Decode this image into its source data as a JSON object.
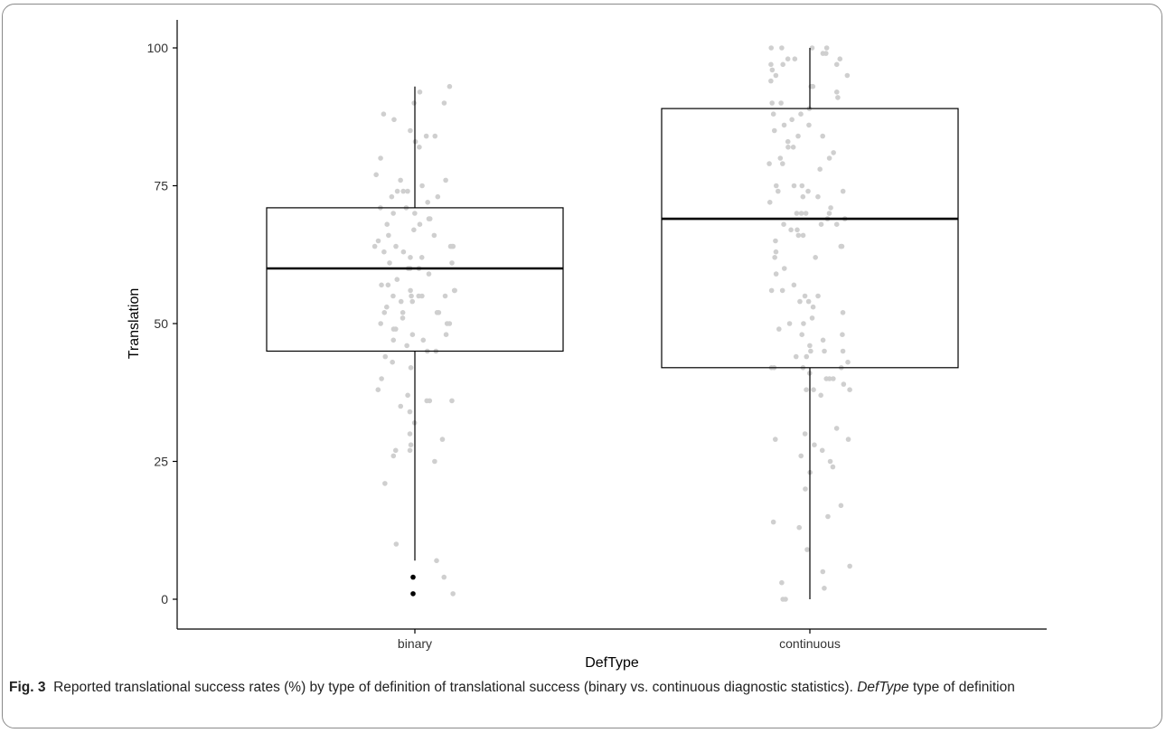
{
  "chart_data": {
    "type": "boxplot",
    "xlabel": "DefType",
    "ylabel": "Translation",
    "categories": [
      "binary",
      "continuous"
    ],
    "ylim": [
      -3,
      105
    ],
    "yticks": [
      0,
      25,
      50,
      75,
      100
    ],
    "grid": false,
    "boxes": [
      {
        "category": "binary",
        "whisker_low": 7,
        "q1": 45,
        "median": 60,
        "q3": 71,
        "whisker_high": 93,
        "outliers": [
          4,
          1
        ]
      },
      {
        "category": "continuous",
        "whisker_low": 0,
        "q1": 42,
        "median": 69,
        "q3": 89,
        "whisker_high": 100,
        "outliers": []
      }
    ],
    "jitter_points": [
      {
        "category": "binary",
        "values": [
          90,
          92,
          88,
          87,
          85,
          83,
          80,
          76,
          75,
          74,
          74,
          73,
          72,
          71,
          70,
          70,
          69,
          68,
          68,
          67,
          66,
          65,
          64,
          64,
          63,
          62,
          61,
          61,
          60,
          60,
          59,
          58,
          57,
          56,
          56,
          55,
          55,
          54,
          53,
          52,
          52,
          51,
          50,
          50,
          49,
          48,
          48,
          47,
          47,
          46,
          45,
          45,
          44,
          43,
          42,
          40,
          38,
          37,
          36,
          36,
          36,
          35,
          34,
          32,
          30,
          29,
          28,
          27,
          27,
          26,
          25,
          21,
          10,
          7,
          4,
          1,
          93,
          90,
          84,
          84,
          82,
          77,
          76,
          74,
          73,
          71,
          69,
          66,
          64,
          64,
          64,
          63,
          62,
          60,
          57,
          56,
          55,
          55,
          55,
          54,
          52,
          52,
          50,
          49
        ]
      },
      {
        "category": "continuous",
        "values": [
          100,
          100,
          100,
          99,
          99,
          98,
          98,
          97,
          97,
          96,
          95,
          94,
          93,
          92,
          91,
          90,
          89,
          88,
          87,
          86,
          85,
          84,
          83,
          82,
          81,
          80,
          79,
          79,
          78,
          75,
          75,
          74,
          74,
          73,
          72,
          71,
          70,
          70,
          70,
          69,
          69,
          68,
          67,
          66,
          65,
          64,
          63,
          62,
          60,
          57,
          56,
          55,
          55,
          54,
          53,
          52,
          51,
          50,
          49,
          48,
          47,
          46,
          45,
          45,
          44,
          43,
          42,
          42,
          41,
          40,
          40,
          39,
          38,
          38,
          37,
          31,
          30,
          29,
          29,
          28,
          27,
          26,
          25,
          24,
          23,
          20,
          17,
          15,
          14,
          13,
          9,
          6,
          5,
          3,
          2,
          0,
          0,
          100,
          98,
          97,
          95,
          93,
          90,
          88,
          86,
          84,
          82,
          80,
          75,
          74,
          73,
          70,
          68,
          68,
          67,
          66,
          64,
          62,
          59,
          56,
          54,
          50,
          48,
          45,
          44,
          42,
          42,
          40,
          38
        ]
      }
    ]
  },
  "caption": {
    "label": "Fig. 3",
    "text_main": "Reported translational success rates (%) by type of definition of translational success (binary vs. continuous diagnostic statistics).",
    "text_term": "DefType",
    "text_rest": "type of definition"
  }
}
